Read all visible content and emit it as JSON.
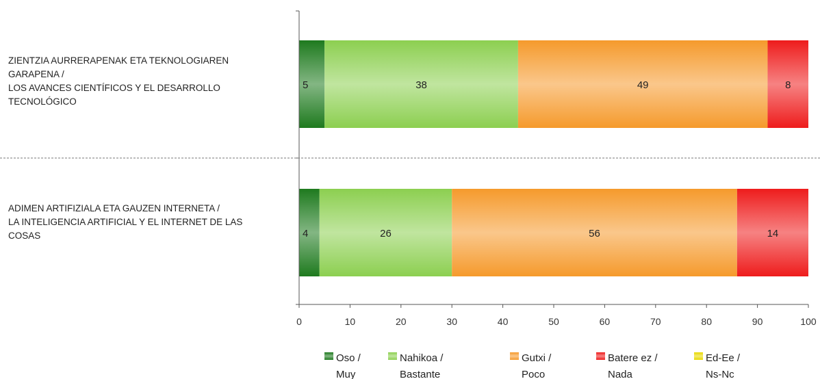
{
  "chart_data": {
    "type": "bar",
    "orientation": "horizontal",
    "stacked": true,
    "categories": [
      [
        "ZIENTZIA AURRERAPENAK ETA TEKNOLOGIAREN",
        "GARAPENA /",
        "LOS AVANCES CIENTÍFICOS  Y EL DESARROLLO",
        "TECNOLÓGICO"
      ],
      [
        "ADIMEN ARTIFIZIALA ETA GAUZEN INTERNETA /",
        "LA INTELIGENCIA ARTIFICIAL Y EL INTERNET DE LAS",
        "COSAS"
      ]
    ],
    "series": [
      {
        "name": [
          "Oso /",
          "Muy"
        ],
        "values": [
          5,
          4
        ],
        "color": "#1e7a1e"
      },
      {
        "name": [
          "Nahikoa /",
          "Bastante"
        ],
        "values": [
          38,
          26
        ],
        "color": "#8ccf50"
      },
      {
        "name": [
          "Gutxi /",
          "Poco"
        ],
        "values": [
          49,
          56
        ],
        "color": "#f59a2c"
      },
      {
        "name": [
          "Batere ez /",
          "Nada"
        ],
        "values": [
          8,
          14
        ],
        "color": "#ee1c1c"
      },
      {
        "name": [
          "Ed-Ee /",
          "Ns-Nc"
        ],
        "values": [
          0,
          0
        ],
        "color": "#e8d800"
      }
    ],
    "xlim": [
      0,
      100
    ],
    "xticks": [
      0,
      10,
      20,
      30,
      40,
      50,
      60,
      70,
      80,
      90,
      100
    ],
    "legend_position": "bottom",
    "grid": false
  }
}
